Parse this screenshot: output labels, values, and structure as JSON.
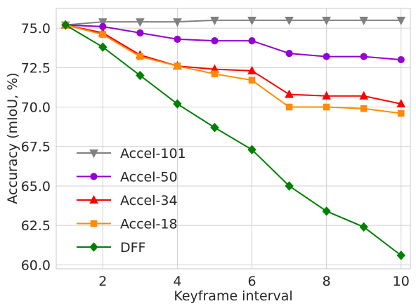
{
  "chart_data": {
    "type": "line",
    "xlabel": "Keyframe interval",
    "ylabel": "Accuracy (mIoU, %)",
    "xlim": [
      0.75,
      10.25
    ],
    "ylim": [
      59.75,
      76.25
    ],
    "xticks": [
      2,
      4,
      6,
      8,
      10
    ],
    "yticks": [
      60.0,
      62.5,
      65.0,
      67.5,
      70.0,
      72.5,
      75.0
    ],
    "ytick_labels": [
      "60.0",
      "62.5",
      "65.0",
      "67.5",
      "70.0",
      "72.5",
      "75.0"
    ],
    "grid": true,
    "legend_position": "lower-left",
    "x": [
      1,
      2,
      3,
      4,
      5,
      6,
      7,
      8,
      9,
      10
    ],
    "series": [
      {
        "name": "Accel-101",
        "color": "#808080",
        "marker": "triangle-down",
        "values": [
          75.2,
          75.4,
          75.4,
          75.4,
          75.5,
          75.5,
          75.5,
          75.5,
          75.5,
          75.5
        ]
      },
      {
        "name": "Accel-50",
        "color": "#9400d3",
        "marker": "circle",
        "values": [
          75.2,
          75.1,
          74.7,
          74.3,
          74.2,
          74.2,
          73.4,
          73.2,
          73.2,
          73.0
        ]
      },
      {
        "name": "Accel-34",
        "color": "#ff0000",
        "marker": "triangle-up",
        "values": [
          75.2,
          74.7,
          73.3,
          72.6,
          72.4,
          72.3,
          70.8,
          70.7,
          70.7,
          70.2
        ]
      },
      {
        "name": "Accel-18",
        "color": "#ff8c00",
        "marker": "square",
        "values": [
          75.2,
          74.6,
          73.2,
          72.6,
          72.1,
          71.7,
          70.0,
          70.0,
          69.9,
          69.6
        ]
      },
      {
        "name": "DFF",
        "color": "#008000",
        "marker": "diamond",
        "values": [
          75.2,
          73.8,
          72.0,
          70.2,
          68.7,
          67.3,
          65.0,
          63.4,
          62.4,
          60.6
        ]
      }
    ]
  }
}
